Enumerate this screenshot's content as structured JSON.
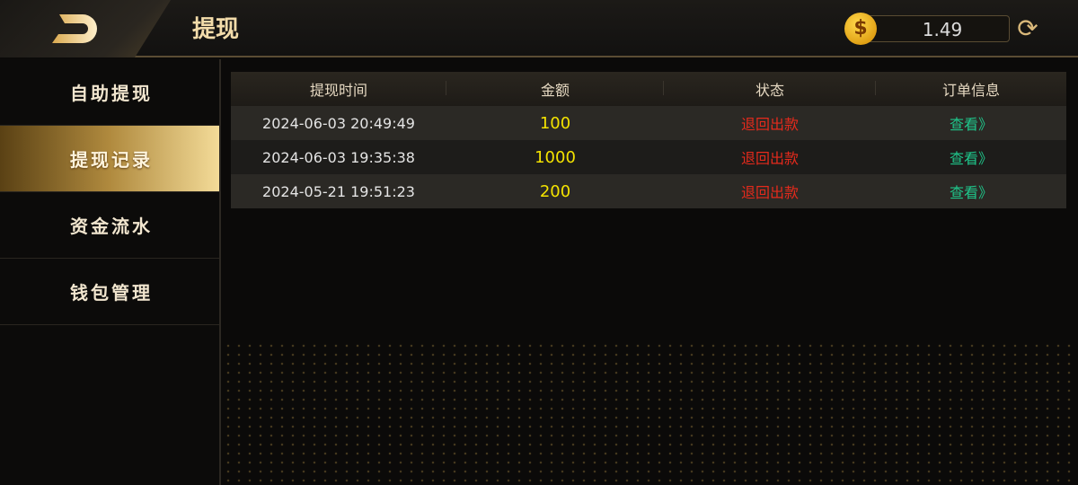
{
  "header": {
    "title": "提现",
    "balance": "1.49",
    "coin_icon": "$"
  },
  "sidebar": {
    "items": [
      {
        "label": "自助提现"
      },
      {
        "label": "提现记录",
        "active": true
      },
      {
        "label": "资金流水"
      },
      {
        "label": "钱包管理"
      }
    ]
  },
  "table": {
    "headers": [
      "提现时间",
      "金额",
      "状态",
      "订单信息"
    ],
    "rows": [
      {
        "time": "2024-06-03 20:49:49",
        "amount": "100",
        "status": "退回出款",
        "action": "查看》"
      },
      {
        "time": "2024-06-03 19:35:38",
        "amount": "1000",
        "status": "退回出款",
        "action": "查看》"
      },
      {
        "time": "2024-05-21 19:51:23",
        "amount": "200",
        "status": "退回出款",
        "action": "查看》"
      }
    ]
  },
  "colors": {
    "accent": "#f3dcaa",
    "amount": "#f4e300",
    "status": "#e52a1c",
    "link": "#1fc58a"
  }
}
